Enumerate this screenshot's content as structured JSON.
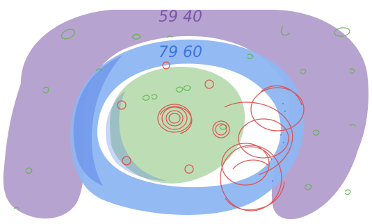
{
  "canvas": {
    "background": "#ffffff"
  },
  "labels": {
    "top_outer": "59 40",
    "top_inner": "79 60"
  },
  "colors": {
    "purple": "#b7a3cf",
    "blue": "#8db6f2",
    "blue_dark": "#5f87e6",
    "green": "#b9dcb0",
    "green_dark": "#9fc7a0",
    "red": "#e04b4b",
    "green_ink": "#5fb24c",
    "text_purple": "#7a55a8",
    "text_blue": "#3c73e0"
  }
}
